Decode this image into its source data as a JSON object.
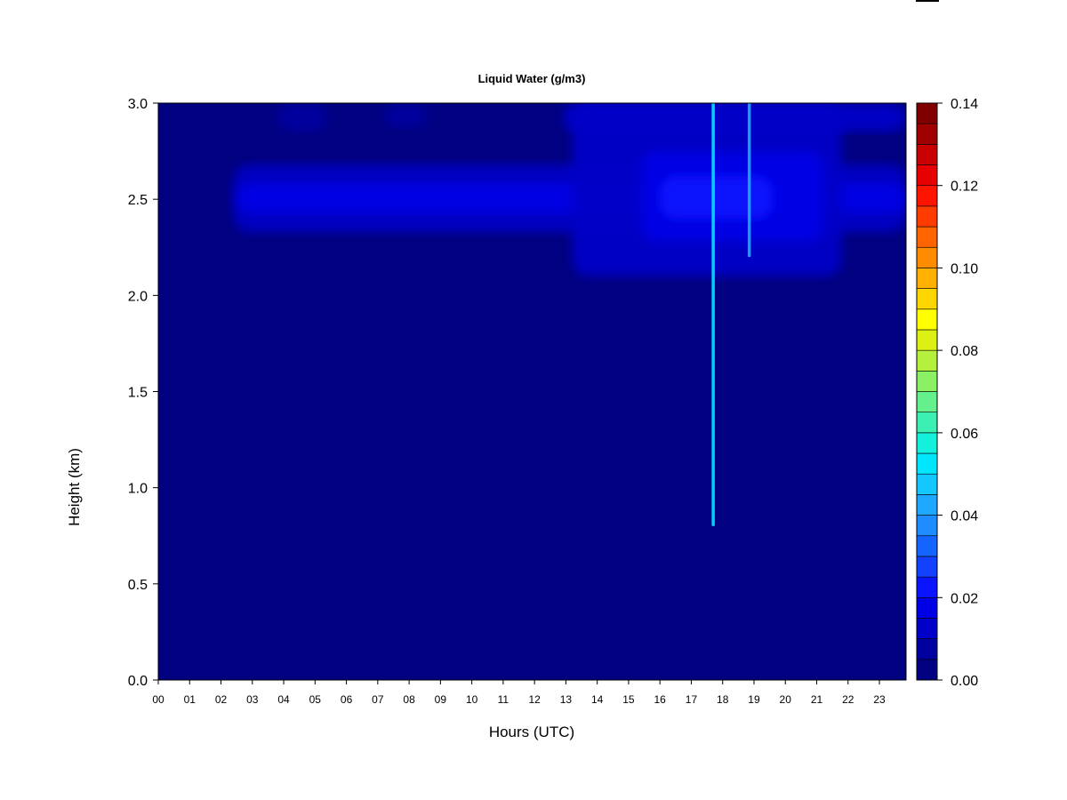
{
  "chart_data": {
    "type": "heatmap",
    "title": "Liquid Water (g/m3)",
    "xlabel": "Hours (UTC)",
    "ylabel": "Height (km)",
    "xlim": [
      0,
      23.85
    ],
    "ylim": [
      0,
      3.0
    ],
    "x_ticks": [
      "00",
      "01",
      "02",
      "03",
      "04",
      "05",
      "06",
      "07",
      "08",
      "09",
      "10",
      "11",
      "12",
      "13",
      "14",
      "15",
      "16",
      "17",
      "18",
      "19",
      "20",
      "21",
      "22",
      "23"
    ],
    "y_ticks": [
      "0.0",
      "0.5",
      "1.0",
      "1.5",
      "2.0",
      "2.5",
      "3.0"
    ],
    "colorbar": {
      "min": 0.0,
      "max": 0.14,
      "step": 0.005,
      "tick_labels": [
        "0.00",
        "0.02",
        "0.04",
        "0.06",
        "0.08",
        "0.10",
        "0.12",
        "0.14"
      ],
      "colors": [
        "#000080",
        "#0000A0",
        "#0000C8",
        "#0000E6",
        "#0A14FF",
        "#1440FF",
        "#1464FF",
        "#1E8CFF",
        "#1EA8FF",
        "#14C8FF",
        "#00E6FF",
        "#14F0DC",
        "#3CF0B4",
        "#64F08C",
        "#8CF064",
        "#B4F03C",
        "#DCF014",
        "#FFFF00",
        "#FFD700",
        "#FFB000",
        "#FF8C00",
        "#FF6400",
        "#FF3C00",
        "#FF1400",
        "#E60000",
        "#C80000",
        "#A00000",
        "#800000"
      ]
    },
    "background_value": 0.002,
    "features": [
      {
        "name": "cloud-layer-2.5km-band",
        "x_start": 2.4,
        "x_end": 23.85,
        "y_low": 2.33,
        "y_high": 2.68,
        "value": 0.012
      },
      {
        "name": "cloud-layer-2.5km-core",
        "x_start": 2.5,
        "x_end": 23.85,
        "y_low": 2.43,
        "y_high": 2.58,
        "value": 0.016
      },
      {
        "name": "afternoon-cloud-broad",
        "x_start": 13.2,
        "x_end": 21.8,
        "y_low": 2.1,
        "y_high": 3.0,
        "value": 0.011
      },
      {
        "name": "afternoon-cloud-core",
        "x_start": 15.4,
        "x_end": 21.2,
        "y_low": 2.28,
        "y_high": 2.75,
        "value": 0.018
      },
      {
        "name": "afternoon-cloud-peak",
        "x_start": 16.0,
        "x_end": 19.6,
        "y_low": 2.4,
        "y_high": 2.62,
        "value": 0.024
      },
      {
        "name": "upper-layer-afternoon",
        "x_start": 12.9,
        "x_end": 23.85,
        "y_low": 2.85,
        "y_high": 3.0,
        "value": 0.013
      },
      {
        "name": "upper-layer-early-a",
        "x_start": 3.8,
        "x_end": 5.4,
        "y_low": 2.85,
        "y_high": 3.0,
        "value": 0.007
      },
      {
        "name": "upper-layer-early-b",
        "x_start": 7.2,
        "x_end": 8.6,
        "y_low": 2.87,
        "y_high": 3.0,
        "value": 0.006
      },
      {
        "name": "spike-17.7h",
        "x_start": 17.65,
        "x_end": 17.75,
        "y_low": 0.8,
        "y_high": 3.0,
        "value": 0.05
      },
      {
        "name": "spike-18.85h",
        "x_start": 18.8,
        "x_end": 18.9,
        "y_low": 2.2,
        "y_high": 3.0,
        "value": 0.04
      }
    ]
  }
}
